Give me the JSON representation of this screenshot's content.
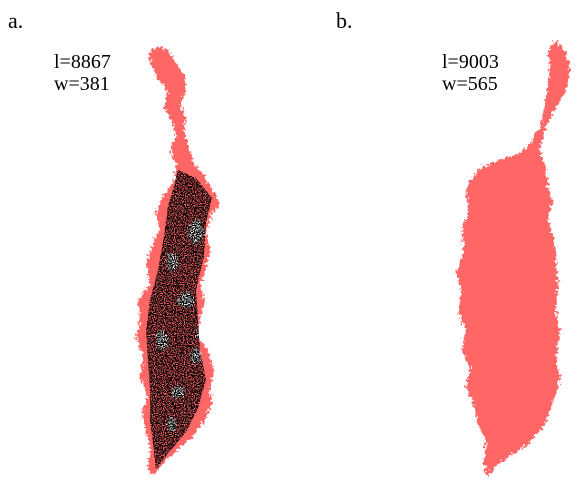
{
  "panels": [
    {
      "label": "a.",
      "stat_l": "l=8867",
      "stat_w": "w=381"
    },
    {
      "label": "b.",
      "stat_l": "l=9003",
      "stat_w": "w=565"
    }
  ],
  "colors": {
    "cluster_fill": "#ff6666",
    "backbone": "#000000",
    "background": "#ffffff"
  }
}
